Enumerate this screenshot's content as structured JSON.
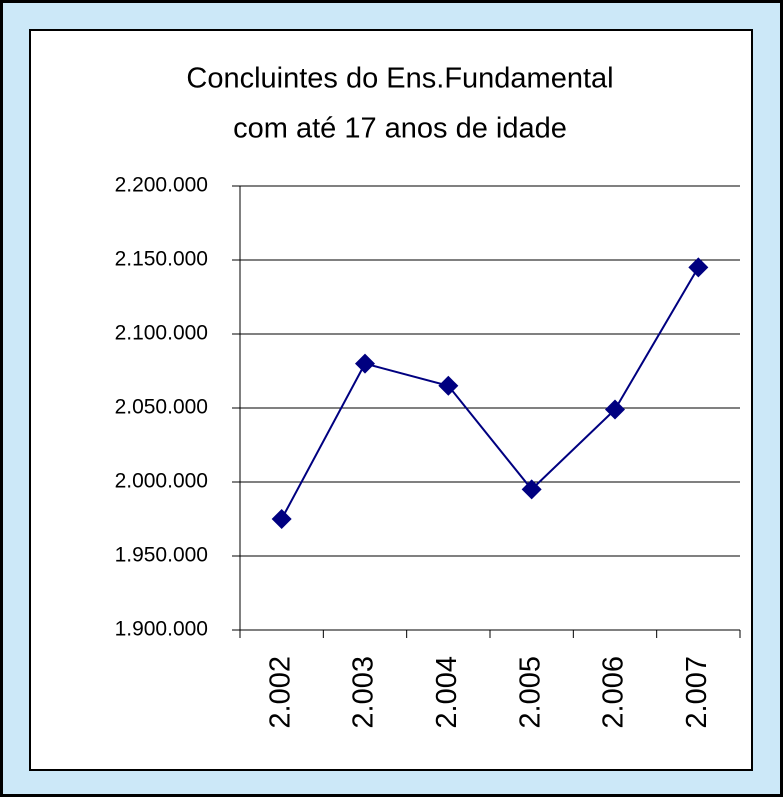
{
  "chart_data": {
    "type": "line",
    "title": [
      "Concluintes do Ens.Fundamental",
      "com até 17 anos de idade"
    ],
    "categories": [
      "2.002",
      "2.003",
      "2.004",
      "2.005",
      "2.006",
      "2.007"
    ],
    "series": [
      {
        "color": "#000080",
        "values": [
          1975000,
          2080000,
          2065000,
          1995000,
          2049000,
          2145000
        ]
      }
    ],
    "ylim": [
      1900000,
      2200000
    ],
    "yticks": [
      {
        "value": 1900000,
        "label": "1.900.000"
      },
      {
        "value": 1950000,
        "label": "1.950.000"
      },
      {
        "value": 2000000,
        "label": "2.000.000"
      },
      {
        "value": 2050000,
        "label": "2.050.000"
      },
      {
        "value": 2100000,
        "label": "2.100.000"
      },
      {
        "value": 2150000,
        "label": "2.150.000"
      },
      {
        "value": 2200000,
        "label": "2.200.000"
      }
    ],
    "grid": true
  }
}
